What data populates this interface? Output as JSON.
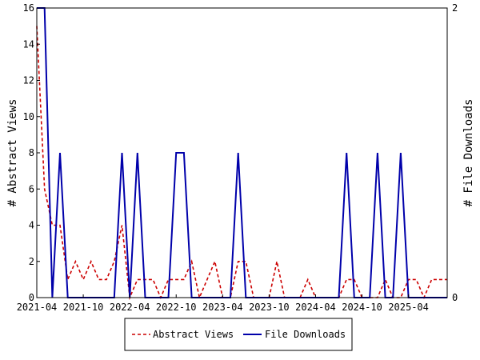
{
  "chart_data": {
    "type": "line",
    "y_left": {
      "label": "# Abstract Views",
      "ylim": [
        0,
        16
      ],
      "ticks": [
        0,
        2,
        4,
        6,
        8,
        10,
        12,
        14,
        16
      ]
    },
    "y_right": {
      "label": "# File Downloads",
      "ylim": [
        0,
        2
      ],
      "ticks": [
        0,
        2
      ]
    },
    "x_range": [
      "2021-04",
      "2025-09"
    ],
    "x_ticks": [
      "2021-04",
      "2021-10",
      "2022-04",
      "2022-10",
      "2023-04",
      "2023-10",
      "2024-04",
      "2024-10",
      "2025-04"
    ],
    "grid": false,
    "legend_position": "bottom",
    "series": [
      {
        "name": "Abstract Views",
        "axis": "left",
        "color": "#cc0000",
        "dash": true,
        "x": [
          "2021-04",
          "2021-05",
          "2021-06",
          "2021-07",
          "2021-08",
          "2021-09",
          "2021-10",
          "2021-11",
          "2021-12",
          "2022-01",
          "2022-02",
          "2022-03",
          "2022-04",
          "2022-05",
          "2022-06",
          "2022-07",
          "2022-08",
          "2022-09",
          "2022-10",
          "2022-11",
          "2022-12",
          "2023-01",
          "2023-02",
          "2023-03",
          "2023-04",
          "2023-05",
          "2023-06",
          "2023-07",
          "2023-08",
          "2023-09",
          "2023-10",
          "2023-11",
          "2023-12",
          "2024-01",
          "2024-02",
          "2024-03",
          "2024-04",
          "2024-05",
          "2024-06",
          "2024-07",
          "2024-08",
          "2024-09",
          "2024-10",
          "2024-11",
          "2024-12",
          "2025-01",
          "2025-02",
          "2025-03",
          "2025-04",
          "2025-05",
          "2025-06",
          "2025-07",
          "2025-08",
          "2025-09"
        ],
        "values": [
          15,
          6,
          4,
          4,
          1,
          2,
          1,
          2,
          1,
          1,
          2,
          4,
          0,
          1,
          1,
          1,
          0,
          1,
          1,
          1,
          2,
          0,
          1,
          2,
          0,
          0,
          2,
          2,
          0,
          0,
          0,
          2,
          0,
          0,
          0,
          1,
          0,
          0,
          0,
          0,
          1,
          1,
          0,
          0,
          0,
          1,
          0,
          0,
          1,
          1,
          0,
          1,
          1,
          1
        ]
      },
      {
        "name": "File Downloads",
        "axis": "right",
        "color": "#0000aa",
        "dash": false,
        "x": [
          "2021-04",
          "2021-05",
          "2021-06",
          "2021-07",
          "2021-08",
          "2021-09",
          "2021-10",
          "2021-11",
          "2021-12",
          "2022-01",
          "2022-02",
          "2022-03",
          "2022-04",
          "2022-05",
          "2022-06",
          "2022-07",
          "2022-08",
          "2022-09",
          "2022-10",
          "2022-11",
          "2022-12",
          "2023-01",
          "2023-02",
          "2023-03",
          "2023-04",
          "2023-05",
          "2023-06",
          "2023-07",
          "2023-08",
          "2023-09",
          "2023-10",
          "2023-11",
          "2023-12",
          "2024-01",
          "2024-02",
          "2024-03",
          "2024-04",
          "2024-05",
          "2024-06",
          "2024-07",
          "2024-08",
          "2024-09",
          "2024-10",
          "2024-11",
          "2024-12",
          "2025-01",
          "2025-02",
          "2025-03",
          "2025-04",
          "2025-05",
          "2025-06",
          "2025-07",
          "2025-08",
          "2025-09"
        ],
        "values": [
          2,
          2,
          0,
          1,
          0,
          0,
          0,
          0,
          0,
          0,
          0,
          1,
          0,
          1,
          0,
          0,
          0,
          0,
          1,
          1,
          0,
          0,
          0,
          0,
          0,
          0,
          1,
          0,
          0,
          0,
          0,
          0,
          0,
          0,
          0,
          0,
          0,
          0,
          0,
          0,
          1,
          0,
          0,
          0,
          1,
          0,
          0,
          1,
          0,
          0,
          0,
          0,
          0,
          0
        ]
      }
    ]
  }
}
